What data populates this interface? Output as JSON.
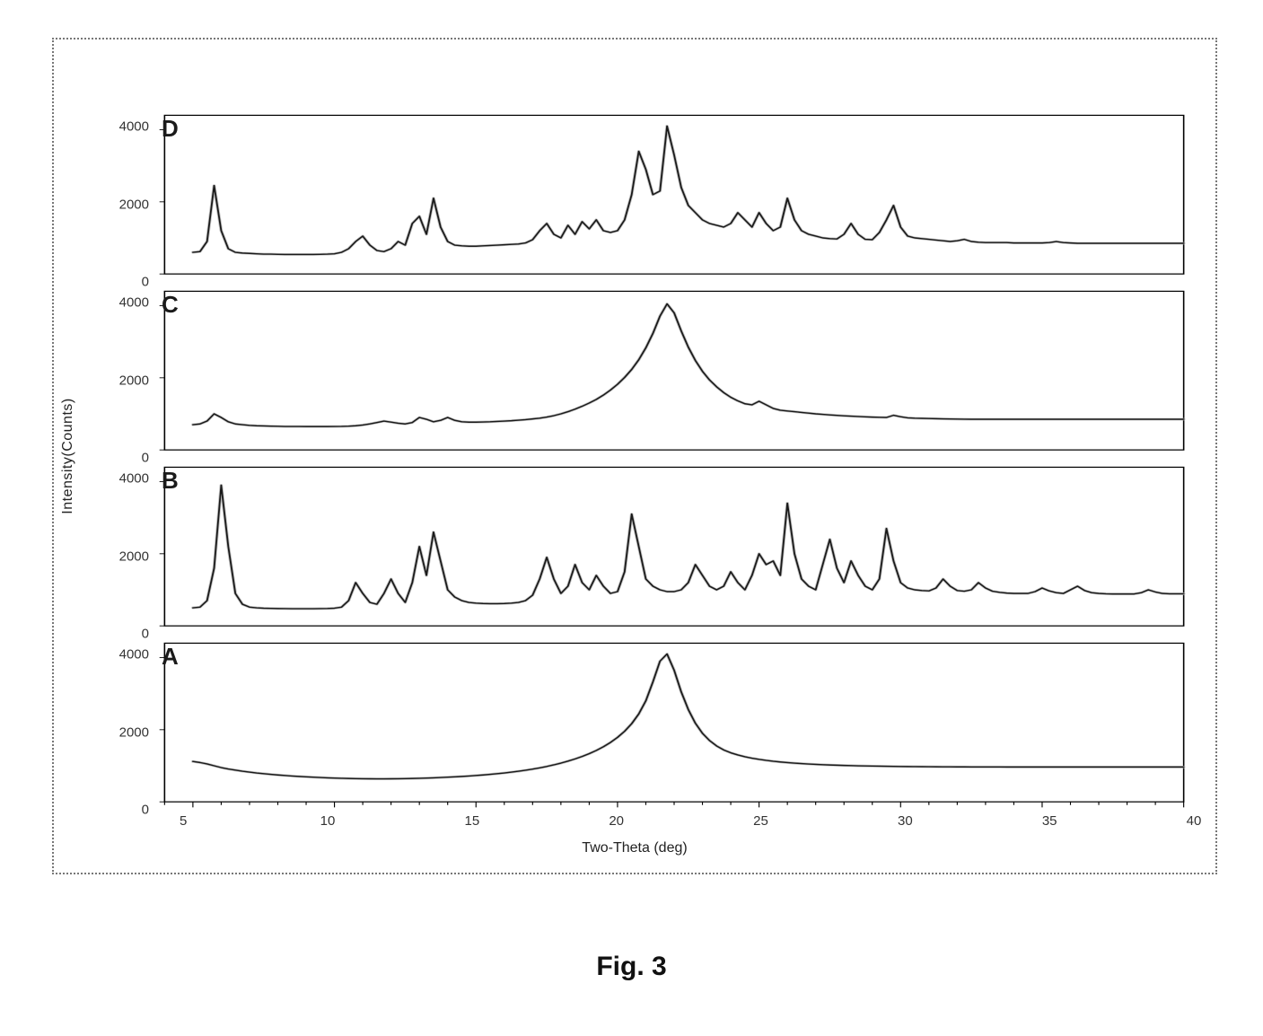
{
  "figure": {
    "caption": "Fig. 3",
    "ylabel": "Intensity(Counts)",
    "xlabel": "Two-Theta (deg)",
    "background_color": "#ffffff",
    "frame_border_color": "#777777",
    "frame_border_style": "dotted",
    "axis_line_color": "#000000",
    "line_color": "#1a1a1a",
    "shadow_color": "#b5b5b5",
    "line_width": 1.6,
    "shadow_width": 3.2,
    "tick_fontsize": 15,
    "label_fontsize": 16,
    "letter_fontsize": 26,
    "caption_fontsize": 30,
    "x_range": [
      4,
      40
    ],
    "y_range": [
      0,
      4400
    ],
    "y_ticks": [
      0,
      2000,
      4000
    ],
    "x_ticks": [
      5,
      10,
      15,
      20,
      25,
      30,
      35,
      40
    ],
    "x_tick_minor_step": 1,
    "x_data_start": 5,
    "x_data_step": 0.25,
    "panels": [
      {
        "letter": "D",
        "y": [
          600,
          620,
          900,
          2450,
          1200,
          700,
          600,
          580,
          570,
          560,
          550,
          550,
          545,
          540,
          540,
          540,
          540,
          540,
          545,
          550,
          560,
          600,
          700,
          900,
          1050,
          800,
          650,
          620,
          700,
          900,
          800,
          1400,
          1600,
          1100,
          2100,
          1300,
          900,
          800,
          780,
          770,
          770,
          780,
          790,
          800,
          810,
          820,
          830,
          860,
          950,
          1200,
          1400,
          1100,
          1000,
          1350,
          1100,
          1450,
          1250,
          1500,
          1200,
          1150,
          1200,
          1500,
          2200,
          3400,
          2900,
          2200,
          2300,
          4100,
          3300,
          2400,
          1900,
          1700,
          1500,
          1400,
          1350,
          1300,
          1400,
          1700,
          1500,
          1300,
          1700,
          1400,
          1200,
          1300,
          2100,
          1500,
          1200,
          1100,
          1050,
          1000,
          980,
          970,
          1100,
          1400,
          1100,
          960,
          950,
          1150,
          1500,
          1900,
          1300,
          1050,
          1000,
          980,
          960,
          940,
          920,
          900,
          920,
          960,
          900,
          880,
          870,
          870,
          870,
          870,
          860,
          860,
          860,
          860,
          860,
          870,
          900,
          870,
          860,
          850,
          850,
          850,
          850,
          850,
          850,
          850,
          850,
          850,
          850,
          850,
          850,
          850,
          850,
          850,
          850
        ]
      },
      {
        "letter": "C",
        "y": [
          700,
          720,
          800,
          1000,
          900,
          780,
          720,
          700,
          680,
          670,
          665,
          660,
          655,
          650,
          650,
          650,
          648,
          648,
          648,
          648,
          650,
          652,
          658,
          670,
          690,
          720,
          760,
          800,
          770,
          740,
          720,
          760,
          900,
          850,
          780,
          820,
          900,
          820,
          780,
          770,
          770,
          775,
          780,
          790,
          800,
          810,
          825,
          840,
          860,
          880,
          910,
          950,
          1000,
          1060,
          1130,
          1210,
          1300,
          1400,
          1520,
          1660,
          1820,
          2010,
          2230,
          2500,
          2830,
          3230,
          3710,
          4050,
          3800,
          3300,
          2850,
          2480,
          2180,
          1940,
          1750,
          1590,
          1460,
          1360,
          1280,
          1250,
          1350,
          1250,
          1150,
          1100,
          1080,
          1060,
          1040,
          1020,
          1000,
          985,
          970,
          958,
          946,
          936,
          926,
          918,
          910,
          904,
          900,
          960,
          920,
          890,
          880,
          875,
          870,
          866,
          862,
          858,
          855,
          852,
          850,
          850,
          850,
          850,
          850,
          850,
          850,
          850,
          850,
          850,
          850,
          850,
          850,
          850,
          850,
          850,
          850,
          850,
          850,
          850,
          850,
          850,
          850,
          850,
          850,
          850,
          850,
          850,
          850,
          850,
          850
        ]
      },
      {
        "letter": "B",
        "y": [
          500,
          520,
          700,
          1600,
          3900,
          2200,
          900,
          600,
          520,
          500,
          490,
          485,
          480,
          478,
          476,
          475,
          475,
          476,
          478,
          482,
          490,
          520,
          700,
          1200,
          900,
          650,
          600,
          900,
          1300,
          900,
          650,
          1200,
          2200,
          1400,
          2600,
          1800,
          1000,
          800,
          700,
          650,
          630,
          620,
          615,
          615,
          620,
          630,
          650,
          700,
          850,
          1300,
          1900,
          1300,
          900,
          1100,
          1700,
          1200,
          1000,
          1400,
          1100,
          900,
          950,
          1500,
          3100,
          2200,
          1300,
          1100,
          1000,
          950,
          950,
          1000,
          1200,
          1700,
          1400,
          1100,
          1000,
          1100,
          1500,
          1200,
          1000,
          1400,
          2000,
          1700,
          1800,
          1400,
          3400,
          2000,
          1300,
          1100,
          1000,
          1700,
          2400,
          1600,
          1200,
          1800,
          1400,
          1100,
          1000,
          1300,
          2700,
          1800,
          1200,
          1050,
          1000,
          980,
          970,
          1050,
          1300,
          1100,
          980,
          960,
          1000,
          1200,
          1050,
          960,
          930,
          910,
          900,
          900,
          900,
          950,
          1050,
          970,
          920,
          900,
          1000,
          1100,
          980,
          920,
          900,
          890,
          885,
          885,
          885,
          885,
          920,
          1000,
          940,
          900,
          890,
          890,
          890
        ]
      },
      {
        "letter": "A",
        "y": [
          1120,
          1090,
          1050,
          1000,
          950,
          910,
          880,
          850,
          825,
          800,
          780,
          762,
          745,
          730,
          716,
          704,
          693,
          683,
          674,
          666,
          659,
          653,
          648,
          644,
          641,
          639,
          638,
          638,
          639,
          641,
          644,
          648,
          653,
          659,
          666,
          674,
          683,
          693,
          704,
          716,
          730,
          745,
          762,
          780,
          800,
          823,
          848,
          876,
          907,
          942,
          981,
          1025,
          1074,
          1129,
          1190,
          1259,
          1336,
          1425,
          1527,
          1646,
          1787,
          1957,
          2167,
          2437,
          2801,
          3326,
          3900,
          4100,
          3650,
          3050,
          2560,
          2180,
          1900,
          1700,
          1550,
          1440,
          1360,
          1300,
          1250,
          1210,
          1178,
          1150,
          1126,
          1106,
          1088,
          1073,
          1060,
          1049,
          1039,
          1030,
          1022,
          1015,
          1009,
          1004,
          999,
          995,
          991,
          988,
          985,
          982,
          980,
          978,
          976,
          975,
          973,
          972,
          971,
          970,
          969,
          969,
          968,
          968,
          967,
          967,
          967,
          966,
          966,
          966,
          966,
          966,
          966,
          966,
          966,
          966,
          966,
          966,
          966,
          966,
          966,
          966,
          966,
          966,
          966,
          966,
          966,
          966,
          966,
          966,
          966,
          966,
          966
        ]
      }
    ]
  }
}
